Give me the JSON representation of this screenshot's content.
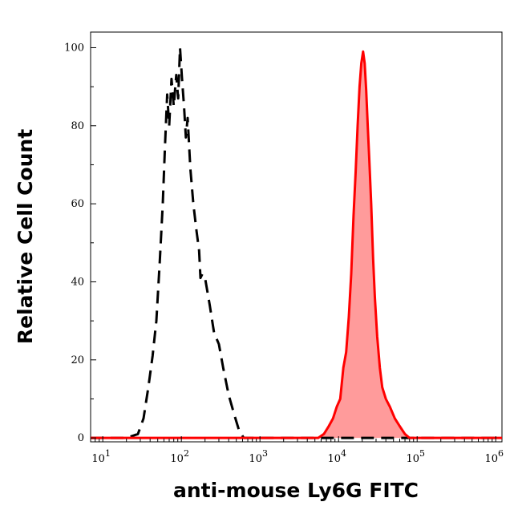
{
  "chart_data": {
    "type": "area",
    "title": "",
    "xlabel": "anti-mouse Ly6G FITC",
    "ylabel": "Relative Cell Count",
    "x_scale": "log",
    "xlim": [
      7,
      1200000
    ],
    "ylim": [
      -1,
      104
    ],
    "x_ticks": [
      {
        "value": 10,
        "base": "10",
        "exp": "1"
      },
      {
        "value": 100,
        "base": "10",
        "exp": "2"
      },
      {
        "value": 1000,
        "base": "10",
        "exp": "3"
      },
      {
        "value": 10000,
        "base": "10",
        "exp": "4"
      },
      {
        "value": 100000,
        "base": "10",
        "exp": "5"
      },
      {
        "value": 1000000,
        "base": "10",
        "exp": "6"
      }
    ],
    "y_ticks": [
      {
        "value": 0,
        "label": "0"
      },
      {
        "value": 20,
        "label": "20"
      },
      {
        "value": 40,
        "label": "40"
      },
      {
        "value": 60,
        "label": "60"
      },
      {
        "value": 80,
        "label": "80"
      },
      {
        "value": 100,
        "label": "100"
      }
    ],
    "grid": false,
    "series": [
      {
        "style": "dashed",
        "color": "#000000",
        "fill": "none",
        "points": [
          [
            7,
            0
          ],
          [
            20,
            0
          ],
          [
            28,
            1
          ],
          [
            33,
            5
          ],
          [
            38,
            13
          ],
          [
            43,
            21
          ],
          [
            48,
            30
          ],
          [
            53,
            45
          ],
          [
            58,
            60
          ],
          [
            62,
            75
          ],
          [
            66,
            88
          ],
          [
            70,
            80
          ],
          [
            75,
            92
          ],
          [
            80,
            85
          ],
          [
            86,
            93
          ],
          [
            91,
            87
          ],
          [
            96,
            100
          ],
          [
            102,
            92
          ],
          [
            108,
            85
          ],
          [
            114,
            77
          ],
          [
            120,
            82
          ],
          [
            130,
            69
          ],
          [
            142,
            60
          ],
          [
            156,
            53
          ],
          [
            168,
            48
          ],
          [
            175,
            41
          ],
          [
            185,
            42
          ],
          [
            200,
            41
          ],
          [
            230,
            34
          ],
          [
            260,
            27
          ],
          [
            300,
            24
          ],
          [
            340,
            18
          ],
          [
            400,
            11
          ],
          [
            470,
            6
          ],
          [
            540,
            2
          ],
          [
            620,
            0
          ],
          [
            1200000,
            0
          ]
        ]
      },
      {
        "style": "solid",
        "color": "#ff0000",
        "fill": "#ff9b9b",
        "points": [
          [
            7,
            0
          ],
          [
            4000,
            0
          ],
          [
            5500,
            0
          ],
          [
            6500,
            1
          ],
          [
            7500,
            3
          ],
          [
            8500,
            5
          ],
          [
            9500,
            8
          ],
          [
            10500,
            10
          ],
          [
            11500,
            18
          ],
          [
            12500,
            22
          ],
          [
            13500,
            31
          ],
          [
            14500,
            42
          ],
          [
            15500,
            57
          ],
          [
            16500,
            68
          ],
          [
            17500,
            80
          ],
          [
            18500,
            90
          ],
          [
            19500,
            96
          ],
          [
            20500,
            99
          ],
          [
            21500,
            96
          ],
          [
            22500,
            89
          ],
          [
            23500,
            80
          ],
          [
            24500,
            72
          ],
          [
            26000,
            60
          ],
          [
            27500,
            46
          ],
          [
            29000,
            36
          ],
          [
            31000,
            26
          ],
          [
            33500,
            18
          ],
          [
            36000,
            13
          ],
          [
            40000,
            10
          ],
          [
            45000,
            8
          ],
          [
            52000,
            5
          ],
          [
            60000,
            3
          ],
          [
            70000,
            1
          ],
          [
            80000,
            0
          ],
          [
            1200000,
            0
          ]
        ]
      }
    ]
  }
}
